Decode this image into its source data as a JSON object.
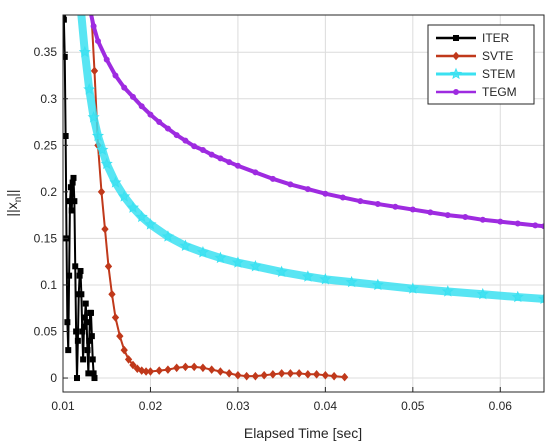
{
  "chart_data": {
    "type": "line",
    "xlabel": "Elapsed Time [sec]",
    "ylabel": "||x_n||",
    "ylabel_main": "||x",
    "ylabel_sub": "n",
    "ylabel_tail": "||",
    "xlim": [
      0.01,
      0.065
    ],
    "ylim": [
      -0.015,
      0.39
    ],
    "xticks": [
      0.01,
      0.02,
      0.03,
      0.04,
      0.05,
      0.06
    ],
    "xtick_labels": [
      "0.01",
      "0.02",
      "0.03",
      "0.04",
      "0.05",
      "0.06"
    ],
    "yticks": [
      0,
      0.05,
      0.1,
      0.15,
      0.2,
      0.25,
      0.3,
      0.35
    ],
    "ytick_labels": [
      "0",
      "0.05",
      "0.1",
      "0.15",
      "0.2",
      "0.25",
      "0.3",
      "0.35"
    ],
    "grid": true,
    "legend_position": "top-right",
    "series": [
      {
        "name": "ITER",
        "color": "#000000",
        "marker": "square",
        "x": [
          0.01,
          0.0101,
          0.0102,
          0.0103,
          0.0104,
          0.0105,
          0.0106,
          0.0107,
          0.0108,
          0.0109,
          0.011,
          0.0111,
          0.0112,
          0.0113,
          0.0114,
          0.0115,
          0.0116,
          0.0117,
          0.0118,
          0.0119,
          0.012,
          0.0121,
          0.0122,
          0.0123,
          0.0124,
          0.0125,
          0.0126,
          0.0127,
          0.0128,
          0.0129,
          0.013,
          0.0131,
          0.0132,
          0.0133,
          0.0134,
          0.0135,
          0.0136
        ],
        "y": [
          0.39,
          0.385,
          0.345,
          0.26,
          0.15,
          0.06,
          0.03,
          0.11,
          0.19,
          0.205,
          0.18,
          0.21,
          0.215,
          0.19,
          0.12,
          0.05,
          0.0,
          0.04,
          0.09,
          0.11,
          0.115,
          0.09,
          0.05,
          0.02,
          0.055,
          0.065,
          0.08,
          0.06,
          0.03,
          0.005,
          0.04,
          0.07,
          0.07,
          0.045,
          0.02,
          0.005,
          0.0
        ]
      },
      {
        "name": "SVTE",
        "color": "#c0391b",
        "marker": "diamond",
        "x": [
          0.0132,
          0.0136,
          0.014,
          0.0144,
          0.0148,
          0.0152,
          0.0156,
          0.016,
          0.0165,
          0.017,
          0.0175,
          0.018,
          0.0185,
          0.019,
          0.0195,
          0.02,
          0.021,
          0.022,
          0.023,
          0.024,
          0.025,
          0.026,
          0.027,
          0.028,
          0.029,
          0.03,
          0.031,
          0.032,
          0.033,
          0.034,
          0.035,
          0.036,
          0.037,
          0.038,
          0.039,
          0.04,
          0.041,
          0.0422
        ],
        "y": [
          0.4,
          0.33,
          0.25,
          0.2,
          0.16,
          0.12,
          0.09,
          0.065,
          0.045,
          0.03,
          0.02,
          0.014,
          0.01,
          0.008,
          0.007,
          0.007,
          0.008,
          0.009,
          0.011,
          0.012,
          0.012,
          0.011,
          0.009,
          0.007,
          0.005,
          0.003,
          0.002,
          0.002,
          0.003,
          0.004,
          0.005,
          0.005,
          0.005,
          0.004,
          0.004,
          0.003,
          0.002,
          0.001
        ]
      },
      {
        "name": "STEM",
        "color": "#3be1f1",
        "marker": "star",
        "x": [
          0.012,
          0.0125,
          0.013,
          0.0135,
          0.014,
          0.0145,
          0.015,
          0.016,
          0.017,
          0.018,
          0.019,
          0.02,
          0.022,
          0.024,
          0.026,
          0.028,
          0.03,
          0.032,
          0.035,
          0.038,
          0.04,
          0.043,
          0.046,
          0.05,
          0.054,
          0.058,
          0.062,
          0.065
        ],
        "y": [
          0.4,
          0.35,
          0.31,
          0.28,
          0.26,
          0.245,
          0.23,
          0.21,
          0.195,
          0.183,
          0.173,
          0.165,
          0.152,
          0.142,
          0.135,
          0.129,
          0.124,
          0.12,
          0.114,
          0.109,
          0.106,
          0.103,
          0.1,
          0.096,
          0.093,
          0.09,
          0.087,
          0.085
        ]
      },
      {
        "name": "TEGM",
        "color": "#9e2be0",
        "marker": "circle",
        "x": [
          0.013,
          0.0135,
          0.014,
          0.015,
          0.016,
          0.017,
          0.018,
          0.019,
          0.02,
          0.021,
          0.022,
          0.023,
          0.024,
          0.025,
          0.026,
          0.027,
          0.028,
          0.029,
          0.03,
          0.032,
          0.034,
          0.036,
          0.038,
          0.04,
          0.042,
          0.044,
          0.046,
          0.048,
          0.05,
          0.052,
          0.054,
          0.056,
          0.058,
          0.06,
          0.062,
          0.064,
          0.065
        ],
        "y": [
          0.4,
          0.378,
          0.362,
          0.342,
          0.325,
          0.312,
          0.302,
          0.292,
          0.283,
          0.275,
          0.268,
          0.261,
          0.255,
          0.249,
          0.245,
          0.24,
          0.236,
          0.232,
          0.228,
          0.221,
          0.214,
          0.208,
          0.203,
          0.198,
          0.194,
          0.19,
          0.187,
          0.184,
          0.181,
          0.178,
          0.175,
          0.173,
          0.17,
          0.168,
          0.166,
          0.164,
          0.163
        ]
      }
    ]
  }
}
